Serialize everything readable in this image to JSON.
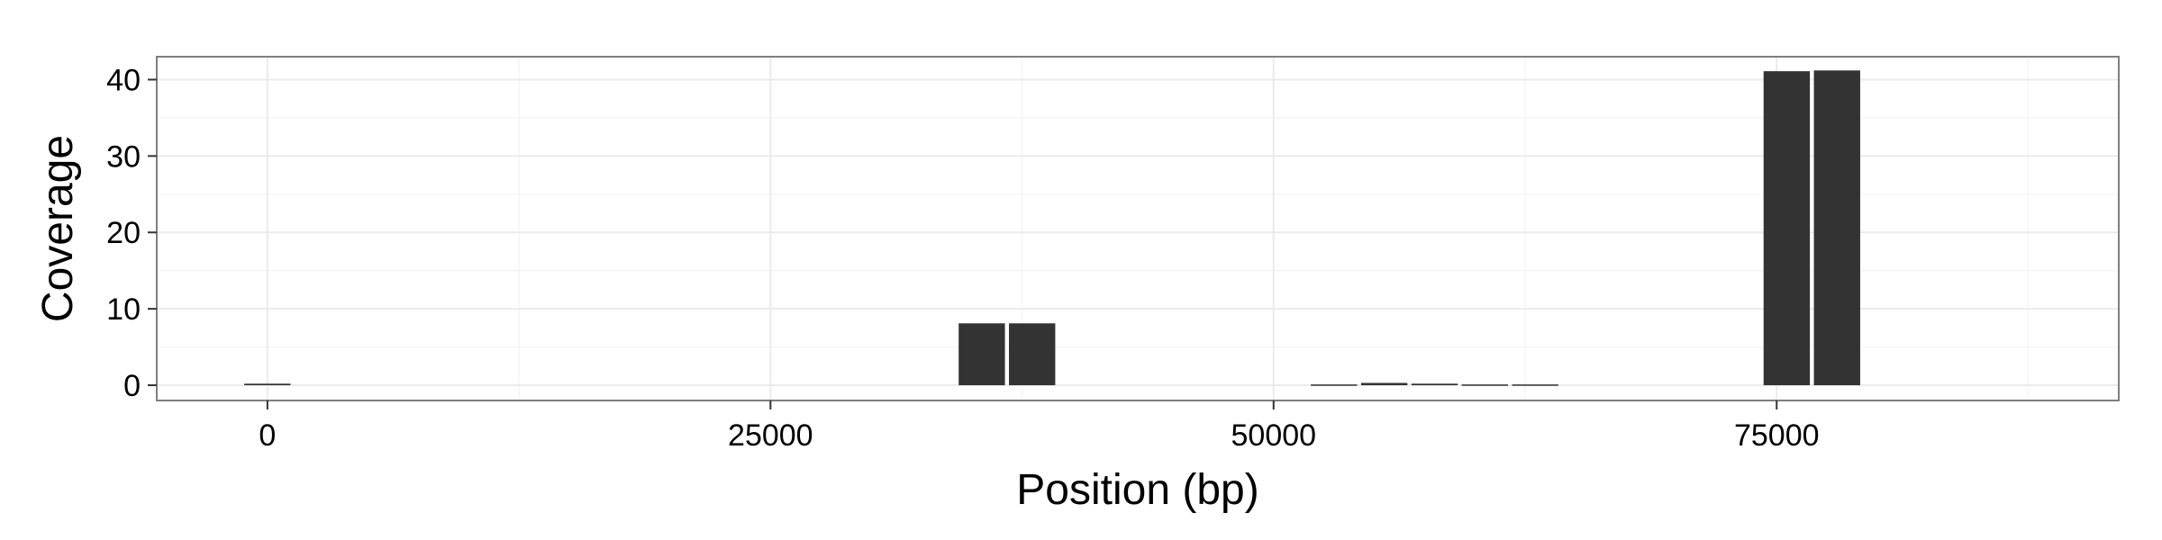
{
  "chart_data": {
    "type": "bar",
    "title": "",
    "xlabel": "Position (bp)",
    "ylabel": "Coverage",
    "xlim": [
      -5500,
      92000
    ],
    "ylim": [
      -2,
      43
    ],
    "x_ticks": [
      0,
      25000,
      50000,
      75000
    ],
    "y_ticks": [
      0,
      10,
      20,
      30,
      40
    ],
    "x_tick_labels": [
      "0",
      "25000",
      "50000",
      "75000"
    ],
    "y_tick_labels": [
      "0",
      "10",
      "20",
      "30",
      "40"
    ],
    "grid": true,
    "legend": "none",
    "bar_color": "#333333",
    "panel_border_color": "#7f7f7f",
    "grid_color": "#ebebeb",
    "bars": [
      {
        "x": 0,
        "value": 0.2
      },
      {
        "x": 35500,
        "value": 8.1
      },
      {
        "x": 38000,
        "value": 8.1
      },
      {
        "x": 53000,
        "value": 0.1
      },
      {
        "x": 55500,
        "value": 0.3
      },
      {
        "x": 58000,
        "value": 0.2
      },
      {
        "x": 60500,
        "value": 0.1
      },
      {
        "x": 63000,
        "value": 0.1
      },
      {
        "x": 75500,
        "value": 41.1
      },
      {
        "x": 78000,
        "value": 41.2
      }
    ],
    "bar_width": 2300
  }
}
